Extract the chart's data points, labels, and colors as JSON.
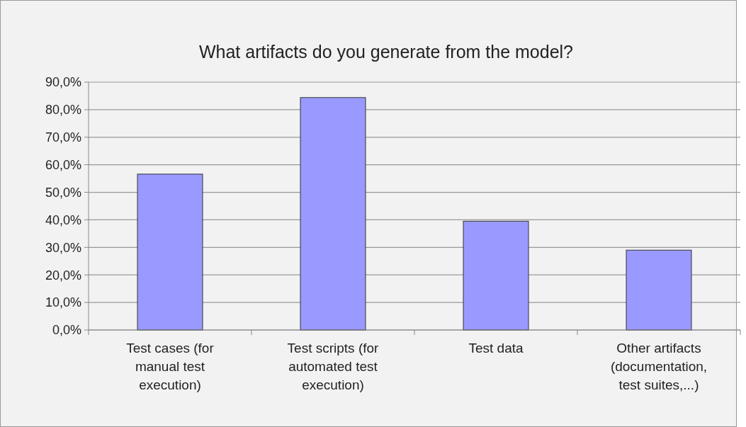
{
  "chart_data": {
    "type": "bar",
    "title": "What artifacts do you generate from the model?",
    "categories": [
      "Test cases (for manual test execution)",
      "Test scripts (for automated test execution)",
      "Test data",
      "Other artifacts (documentation, test suites,...)"
    ],
    "values": [
      56.6,
      84.4,
      39.5,
      29.0
    ],
    "color": "#9999ff",
    "ylim": [
      0,
      90
    ],
    "yticks": [
      {
        "value": 0,
        "label": "0,0%"
      },
      {
        "value": 10,
        "label": "10,0%"
      },
      {
        "value": 20,
        "label": "20,0%"
      },
      {
        "value": 30,
        "label": "30,0%"
      },
      {
        "value": 40,
        "label": "40,0%"
      },
      {
        "value": 50,
        "label": "50,0%"
      },
      {
        "value": 60,
        "label": "60,0%"
      },
      {
        "value": 70,
        "label": "70,0%"
      },
      {
        "value": 80,
        "label": "80,0%"
      },
      {
        "value": 90,
        "label": "90,0%"
      }
    ],
    "grid": "y"
  }
}
